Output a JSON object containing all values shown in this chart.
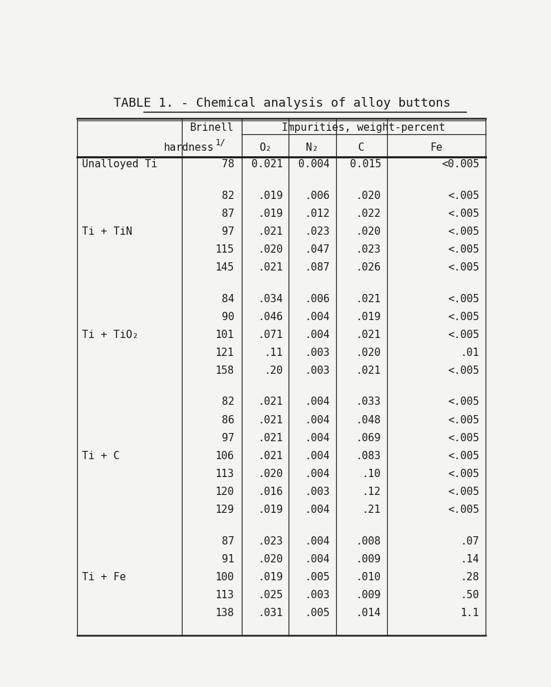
{
  "title": "TABLE 1. - Chemical analysis of alloy buttons",
  "groups": [
    {
      "label": "Unalloyed Ti",
      "rows": [
        [
          "78",
          "0.021",
          "0.004",
          "0.015",
          "<0.005"
        ]
      ]
    },
    {
      "label": "Ti + TiN",
      "rows": [
        [
          "82",
          ".019",
          ".006",
          ".020",
          "<.005"
        ],
        [
          "87",
          ".019",
          ".012",
          ".022",
          "<.005"
        ],
        [
          "97",
          ".021",
          ".023",
          ".020",
          "<.005"
        ],
        [
          "115",
          ".020",
          ".047",
          ".023",
          "<.005"
        ],
        [
          "145",
          ".021",
          ".087",
          ".026",
          "<.005"
        ]
      ]
    },
    {
      "label": "Ti + TiO₂",
      "rows": [
        [
          "84",
          ".034",
          ".006",
          ".021",
          "<.005"
        ],
        [
          "90",
          ".046",
          ".004",
          ".019",
          "<.005"
        ],
        [
          "101",
          ".071",
          ".004",
          ".021",
          "<.005"
        ],
        [
          "121",
          ".11",
          ".003",
          ".020",
          ".01"
        ],
        [
          "158",
          ".20",
          ".003",
          ".021",
          "<.005"
        ]
      ]
    },
    {
      "label": "Ti + C",
      "rows": [
        [
          "82",
          ".021",
          ".004",
          ".033",
          "<.005"
        ],
        [
          "86",
          ".021",
          ".004",
          ".048",
          "<.005"
        ],
        [
          "97",
          ".021",
          ".004",
          ".069",
          "<.005"
        ],
        [
          "106",
          ".021",
          ".004",
          ".083",
          "<.005"
        ],
        [
          "113",
          ".020",
          ".004",
          ".10",
          "<.005"
        ],
        [
          "120",
          ".016",
          ".003",
          ".12",
          "<.005"
        ],
        [
          "129",
          ".019",
          ".004",
          ".21",
          "<.005"
        ]
      ]
    },
    {
      "label": "Ti + Fe",
      "rows": [
        [
          "87",
          ".023",
          ".004",
          ".008",
          ".07"
        ],
        [
          "91",
          ".020",
          ".004",
          ".009",
          ".14"
        ],
        [
          "100",
          ".019",
          ".005",
          ".010",
          ".28"
        ],
        [
          "113",
          ".025",
          ".003",
          ".009",
          ".50"
        ],
        [
          "138",
          ".031",
          ".005",
          ".014",
          "1.1"
        ]
      ]
    }
  ],
  "bg_color": "#f5f5f0",
  "text_color": "#1a1a1a",
  "font_family": "monospace",
  "title_fontsize": 13,
  "header_fontsize": 11,
  "cell_fontsize": 11,
  "label_fontsize": 11,
  "col_headers_row2": [
    "O₂",
    "N₂",
    "C",
    "Fe"
  ]
}
